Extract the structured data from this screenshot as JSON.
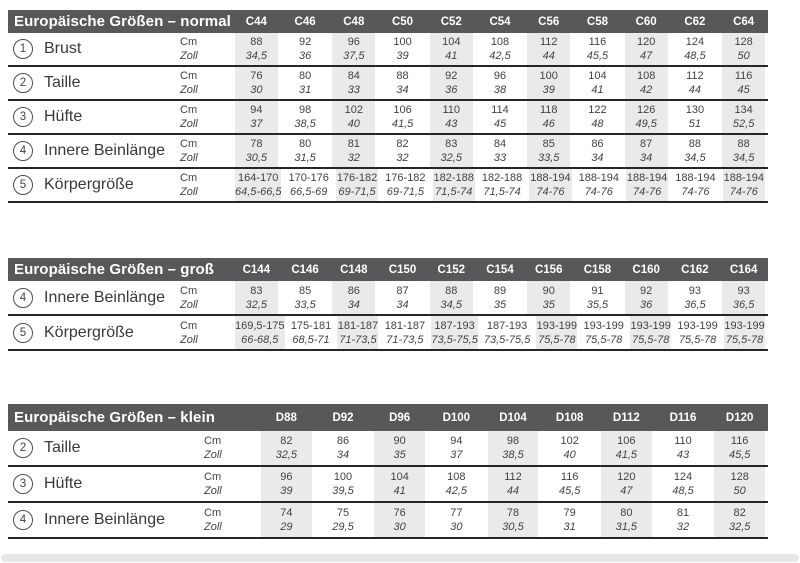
{
  "colors": {
    "header_bar": "#58585a",
    "header_text": "#ffffff",
    "body_text": "#424244",
    "stripe": "#eaeaea",
    "row_line": "#262628",
    "scrollbar": "#e7e7e7"
  },
  "units": {
    "cm": "Cm",
    "zoll": "Zoll"
  },
  "tables": [
    {
      "id": "t-normal",
      "title": "Europäische Größen – normal",
      "sizes": [
        "C44",
        "C46",
        "C48",
        "C50",
        "C52",
        "C54",
        "C56",
        "C58",
        "C60",
        "C62",
        "C64"
      ],
      "rows": [
        {
          "num": "1",
          "label": "Brust",
          "cm": [
            "88",
            "92",
            "96",
            "100",
            "104",
            "108",
            "112",
            "116",
            "120",
            "124",
            "128"
          ],
          "zoll": [
            "34,5",
            "36",
            "37,5",
            "39",
            "41",
            "42,5",
            "44",
            "45,5",
            "47",
            "48,5",
            "50"
          ]
        },
        {
          "num": "2",
          "label": "Taille",
          "cm": [
            "76",
            "80",
            "84",
            "88",
            "92",
            "96",
            "100",
            "104",
            "108",
            "112",
            "116"
          ],
          "zoll": [
            "30",
            "31",
            "33",
            "34",
            "36",
            "38",
            "39",
            "41",
            "42",
            "44",
            "45"
          ]
        },
        {
          "num": "3",
          "label": "Hüfte",
          "cm": [
            "94",
            "98",
            "102",
            "106",
            "110",
            "114",
            "118",
            "122",
            "126",
            "130",
            "134"
          ],
          "zoll": [
            "37",
            "38,5",
            "40",
            "41,5",
            "43",
            "45",
            "46",
            "48",
            "49,5",
            "51",
            "52,5"
          ]
        },
        {
          "num": "4",
          "label": "Innere Beinlänge",
          "cm": [
            "78",
            "80",
            "81",
            "82",
            "83",
            "84",
            "85",
            "86",
            "87",
            "88",
            "88"
          ],
          "zoll": [
            "30,5",
            "31,5",
            "32",
            "32",
            "32,5",
            "33",
            "33,5",
            "34",
            "34",
            "34,5",
            "34,5"
          ]
        },
        {
          "num": "5",
          "label": "Körpergröße",
          "cm": [
            "164-170",
            "170-176",
            "176-182",
            "176-182",
            "182-188",
            "182-188",
            "188-194",
            "188-194",
            "188-194",
            "188-194",
            "188-194"
          ],
          "zoll": [
            "64,5-66,5",
            "66,5-69",
            "69-71,5",
            "69-71,5",
            "71,5-74",
            "71,5-74",
            "74-76",
            "74-76",
            "74-76",
            "74-76",
            "74-76"
          ]
        }
      ]
    },
    {
      "id": "t-gross",
      "title": "Europäische Größen – groß",
      "sizes": [
        "C144",
        "C146",
        "C148",
        "C150",
        "C152",
        "C154",
        "C156",
        "C158",
        "C160",
        "C162",
        "C164"
      ],
      "rows": [
        {
          "num": "4",
          "label": "Innere Beinlänge",
          "cm": [
            "83",
            "85",
            "86",
            "87",
            "88",
            "89",
            "90",
            "91",
            "92",
            "93",
            "93"
          ],
          "zoll": [
            "32,5",
            "33,5",
            "34",
            "34",
            "34,5",
            "35",
            "35",
            "35,5",
            "36",
            "36,5",
            "36,5"
          ]
        },
        {
          "num": "5",
          "label": "Körpergröße",
          "cm": [
            "169,5-175",
            "175-181",
            "181-187",
            "181-187",
            "187-193",
            "187-193",
            "193-199",
            "193-199",
            "193-199",
            "193-199",
            "193-199"
          ],
          "zoll": [
            "66-68,5",
            "68,5-71",
            "71-73,5",
            "71-73,5",
            "73,5-75,5",
            "73,5-75,5",
            "75,5-78",
            "75,5-78",
            "75,5-78",
            "75,5-78",
            "75,5-78"
          ]
        }
      ]
    },
    {
      "id": "t-klein",
      "title": "Europäische Größen – klein",
      "sizes": [
        "D88",
        "D92",
        "D96",
        "D100",
        "D104",
        "D108",
        "D112",
        "D116",
        "D120"
      ],
      "rows": [
        {
          "num": "2",
          "label": "Taille",
          "cm": [
            "82",
            "86",
            "90",
            "94",
            "98",
            "102",
            "106",
            "110",
            "116"
          ],
          "zoll": [
            "32,5",
            "34",
            "35",
            "37",
            "38,5",
            "40",
            "41,5",
            "43",
            "45,5"
          ]
        },
        {
          "num": "3",
          "label": "Hüfte",
          "cm": [
            "96",
            "100",
            "104",
            "108",
            "112",
            "116",
            "120",
            "124",
            "128"
          ],
          "zoll": [
            "39",
            "39,5",
            "41",
            "42,5",
            "44",
            "45,5",
            "47",
            "48,5",
            "50"
          ]
        },
        {
          "num": "4",
          "label": "Innere Beinlänge",
          "cm": [
            "74",
            "75",
            "76",
            "77",
            "78",
            "79",
            "80",
            "81",
            "82"
          ],
          "zoll": [
            "29",
            "29,5",
            "30",
            "30",
            "30,5",
            "31",
            "31,5",
            "32",
            "32,5"
          ]
        }
      ]
    }
  ]
}
